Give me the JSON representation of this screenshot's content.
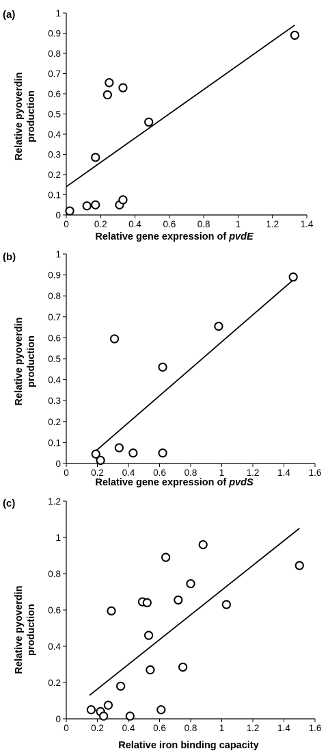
{
  "chart_data": [
    {
      "type": "scatter",
      "panel_label": "(a)",
      "xlabel_prefix": "Relative gene expression of ",
      "xlabel_gene": "pvdE",
      "ylabel_line1": "Relative pyoverdin",
      "ylabel_line2": "production",
      "xlim": [
        0,
        1.4
      ],
      "ylim": [
        0,
        1
      ],
      "xticks": [
        "0",
        "0.2",
        "0.4",
        "0.6",
        "0.8",
        "1",
        "1.2",
        "1.4"
      ],
      "yticks": [
        "0",
        "0.1",
        "0.2",
        "0.3",
        "0.4",
        "0.5",
        "0.6",
        "0.7",
        "0.8",
        "0.9",
        "1"
      ],
      "points": [
        {
          "x": 0.02,
          "y": 0.02
        },
        {
          "x": 0.12,
          "y": 0.045
        },
        {
          "x": 0.17,
          "y": 0.05
        },
        {
          "x": 0.17,
          "y": 0.285
        },
        {
          "x": 0.24,
          "y": 0.595
        },
        {
          "x": 0.25,
          "y": 0.655
        },
        {
          "x": 0.31,
          "y": 0.05
        },
        {
          "x": 0.33,
          "y": 0.075
        },
        {
          "x": 0.33,
          "y": 0.63
        },
        {
          "x": 0.48,
          "y": 0.46
        },
        {
          "x": 1.33,
          "y": 0.89
        }
      ],
      "trendline": {
        "x": [
          0.0,
          1.33
        ],
        "y": [
          0.14,
          0.94
        ]
      }
    },
    {
      "type": "scatter",
      "panel_label": "(b)",
      "xlabel_prefix": "Relative gene expression of ",
      "xlabel_gene": "pvdS",
      "ylabel_line1": "Relative pyoverdin",
      "ylabel_line2": "production",
      "xlim": [
        0,
        1.6
      ],
      "ylim": [
        0,
        1
      ],
      "xticks": [
        "0",
        "0.2",
        "0.4",
        "0.6",
        "0.8",
        "1",
        "1.2",
        "1.4",
        "1.6"
      ],
      "yticks": [
        "0",
        "0.1",
        "0.2",
        "0.3",
        "0.4",
        "0.5",
        "0.6",
        "0.7",
        "0.8",
        "0.9",
        "1"
      ],
      "points": [
        {
          "x": 0.19,
          "y": 0.045
        },
        {
          "x": 0.22,
          "y": 0.015
        },
        {
          "x": 0.31,
          "y": 0.595
        },
        {
          "x": 0.34,
          "y": 0.075
        },
        {
          "x": 0.43,
          "y": 0.05
        },
        {
          "x": 0.62,
          "y": 0.05
        },
        {
          "x": 0.62,
          "y": 0.46
        },
        {
          "x": 0.98,
          "y": 0.655
        },
        {
          "x": 1.46,
          "y": 0.89
        }
      ],
      "trendline": {
        "x": [
          0.19,
          1.45
        ],
        "y": [
          0.06,
          0.87
        ]
      }
    },
    {
      "type": "scatter",
      "panel_label": "(c)",
      "xlabel": "Relative iron binding capacity",
      "ylabel_line1": "Relative pyoverdin",
      "ylabel_line2": "production",
      "xlim": [
        0,
        1.6
      ],
      "ylim": [
        0,
        1.2
      ],
      "xticks": [
        "0",
        "0.2",
        "0.4",
        "0.6",
        "0.8",
        "1",
        "1.2",
        "1.4",
        "1.6"
      ],
      "yticks": [
        "0",
        "0.2",
        "0.4",
        "0.6",
        "0.8",
        "1",
        "1.2"
      ],
      "points": [
        {
          "x": 0.16,
          "y": 0.05
        },
        {
          "x": 0.22,
          "y": 0.04
        },
        {
          "x": 0.24,
          "y": 0.015
        },
        {
          "x": 0.27,
          "y": 0.075
        },
        {
          "x": 0.29,
          "y": 0.595
        },
        {
          "x": 0.35,
          "y": 0.18
        },
        {
          "x": 0.41,
          "y": 0.015
        },
        {
          "x": 0.49,
          "y": 0.645
        },
        {
          "x": 0.52,
          "y": 0.64
        },
        {
          "x": 0.53,
          "y": 0.46
        },
        {
          "x": 0.54,
          "y": 0.27
        },
        {
          "x": 0.61,
          "y": 0.05
        },
        {
          "x": 0.64,
          "y": 0.89
        },
        {
          "x": 0.72,
          "y": 0.655
        },
        {
          "x": 0.75,
          "y": 0.285
        },
        {
          "x": 0.8,
          "y": 0.745
        },
        {
          "x": 0.88,
          "y": 0.96
        },
        {
          "x": 1.03,
          "y": 0.63
        },
        {
          "x": 1.5,
          "y": 0.845
        }
      ],
      "trendline": {
        "x": [
          0.15,
          1.5
        ],
        "y": [
          0.13,
          1.05
        ]
      }
    }
  ]
}
